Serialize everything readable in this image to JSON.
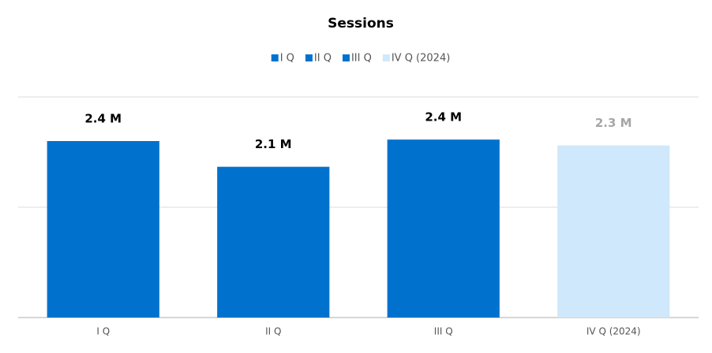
{
  "chart_data": {
    "type": "bar",
    "title": "Sessions",
    "categories": [
      "I Q",
      "II Q",
      "III Q",
      "IV Q (2024)"
    ],
    "series": [
      {
        "name": "I Q",
        "color": "#0072ce",
        "label_color": "#000000",
        "values": [
          2400000,
          null,
          null,
          null
        ],
        "value_labels": [
          "2.4 M",
          null,
          null,
          null
        ]
      },
      {
        "name": "II Q",
        "color": "#0072ce",
        "label_color": "#000000",
        "values": [
          null,
          2050000,
          null,
          null
        ],
        "value_labels": [
          null,
          "2.1 M",
          null,
          null
        ]
      },
      {
        "name": "III Q",
        "color": "#0072ce",
        "label_color": "#000000",
        "values": [
          null,
          null,
          2420000,
          null
        ],
        "value_labels": [
          null,
          null,
          "2.4 M",
          null
        ]
      },
      {
        "name": "IV Q (2024)",
        "color": "#cfe8fb",
        "label_color": "#a6a6a6",
        "values": [
          null,
          null,
          null,
          2340000
        ],
        "value_labels": [
          null,
          null,
          null,
          "2.3 M"
        ]
      }
    ],
    "ylim": [
      0,
      3000000
    ],
    "yticks": [
      0,
      1500000,
      3000000
    ],
    "grid": true,
    "legend": "top"
  }
}
